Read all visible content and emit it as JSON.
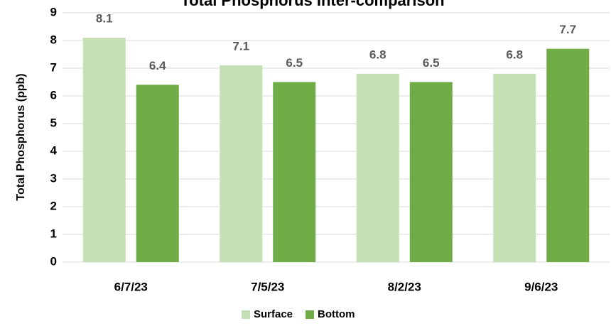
{
  "chart_data": {
    "type": "bar",
    "title": "Total Phosphorus Inter-comparison",
    "y_label": "Total Phosphorus (ppb)",
    "categories": [
      "6/7/23",
      "7/5/23",
      "8/2/23",
      "9/6/23"
    ],
    "series": [
      {
        "name": "Surface",
        "color": "#c5e0b4",
        "values": [
          8.1,
          7.1,
          6.8,
          6.8
        ]
      },
      {
        "name": "Bottom",
        "color": "#70ad47",
        "values": [
          6.4,
          6.5,
          6.5,
          7.7
        ]
      }
    ],
    "ylim": [
      0,
      9
    ],
    "yticks": [
      0,
      1,
      2,
      3,
      4,
      5,
      6,
      7,
      8,
      9
    ],
    "grid": true,
    "legend": "bottom"
  }
}
